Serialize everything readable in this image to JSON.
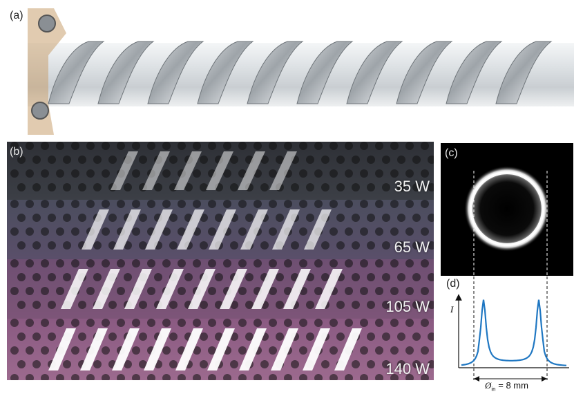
{
  "panels": {
    "a": {
      "label": "(a)"
    },
    "b": {
      "label": "(b)",
      "powers": [
        "35 W",
        "65 W",
        "105 W",
        "140 W"
      ]
    },
    "c": {
      "label": "(c)"
    },
    "d": {
      "label": "(d)",
      "y_axis_label": "I",
      "diameter_symbol": "Ø",
      "diameter_subscript": "in",
      "diameter_value": "= 8 mm"
    }
  },
  "colors": {
    "tube": "#d9dde0",
    "metal": "#a9aeb3",
    "profile": "#1f77c2",
    "plasma_bg_low": "#3a3d44",
    "plasma_bg_high": "#8a5a82"
  }
}
